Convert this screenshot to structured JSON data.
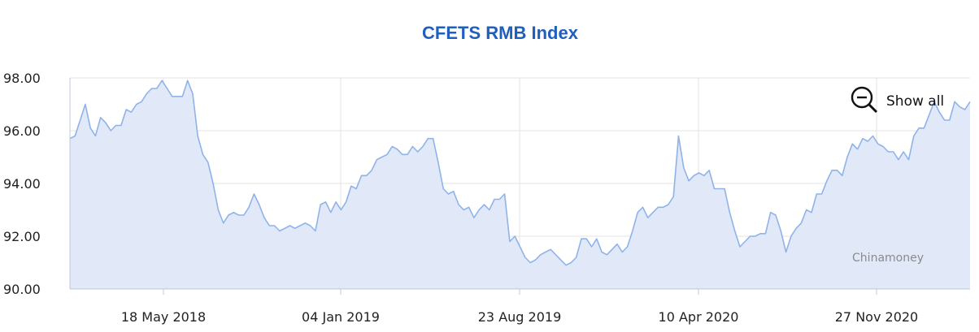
{
  "chart_data": {
    "type": "area",
    "title": "CFETS RMB Index",
    "xlabel": "",
    "ylabel": "",
    "ylim": [
      90,
      98
    ],
    "yticks": [
      "90.00",
      "92.00",
      "94.00",
      "96.00",
      "98.00"
    ],
    "xticks": [
      "18 May 2018",
      "04 Jan 2019",
      "23 Aug 2019",
      "10 Apr 2020",
      "27 Nov 2020"
    ],
    "grid": true,
    "series": [
      {
        "values": [
          95.7,
          95.8,
          96.4,
          97.0,
          96.1,
          95.8,
          96.5,
          96.3,
          96.0,
          96.2,
          96.2,
          96.8,
          96.7,
          97.0,
          97.1,
          97.4,
          97.6,
          97.6,
          97.9,
          97.6,
          97.3,
          97.3,
          97.3,
          97.9,
          97.4,
          95.8,
          95.1,
          94.8,
          94.0,
          93.0,
          92.5,
          92.8,
          92.9,
          92.8,
          92.8,
          93.1,
          93.6,
          93.2,
          92.7,
          92.4,
          92.4,
          92.2,
          92.3,
          92.4,
          92.3,
          92.4,
          92.5,
          92.4,
          92.2,
          93.2,
          93.3,
          92.9,
          93.3,
          93.0,
          93.3,
          93.9,
          93.8,
          94.3,
          94.3,
          94.5,
          94.9,
          95.0,
          95.1,
          95.4,
          95.3,
          95.1,
          95.1,
          95.4,
          95.2,
          95.4,
          95.7,
          95.7,
          94.8,
          93.8,
          93.6,
          93.7,
          93.2,
          93.0,
          93.1,
          92.7,
          93.0,
          93.2,
          93.0,
          93.4,
          93.4,
          93.6,
          91.8,
          92.0,
          91.6,
          91.2,
          91.0,
          91.1,
          91.3,
          91.4,
          91.5,
          91.3,
          91.1,
          90.9,
          91.0,
          91.2,
          91.9,
          91.9,
          91.6,
          91.9,
          91.4,
          91.3,
          91.5,
          91.7,
          91.4,
          91.6,
          92.2,
          92.9,
          93.1,
          92.7,
          92.9,
          93.1,
          93.1,
          93.2,
          93.5,
          95.8,
          94.6,
          94.1,
          94.3,
          94.4,
          94.3,
          94.5,
          93.8,
          93.8,
          93.8,
          92.9,
          92.2,
          91.6,
          91.8,
          92.0,
          92.0,
          92.1,
          92.1,
          92.9,
          92.8,
          92.2,
          91.4,
          92.0,
          92.3,
          92.5,
          93.0,
          92.9,
          93.6,
          93.6,
          94.1,
          94.5,
          94.5,
          94.3,
          95.0,
          95.5,
          95.3,
          95.7,
          95.6,
          95.8,
          95.5,
          95.4,
          95.2,
          95.2,
          94.9,
          95.2,
          94.9,
          95.8,
          96.1,
          96.1,
          96.6,
          97.1,
          96.7,
          96.4,
          96.4,
          97.1,
          96.9,
          96.8,
          97.1
        ]
      }
    ]
  },
  "zoom": {
    "label": "Show all",
    "icon": "zoom-out-icon"
  },
  "credit": "Chinamoney",
  "colors": {
    "line": "#8fb3e8",
    "fill": "#e1e9f9",
    "title": "#1f5fbf",
    "grid": "#e3e3e3",
    "axis": "#c0c8d8"
  }
}
